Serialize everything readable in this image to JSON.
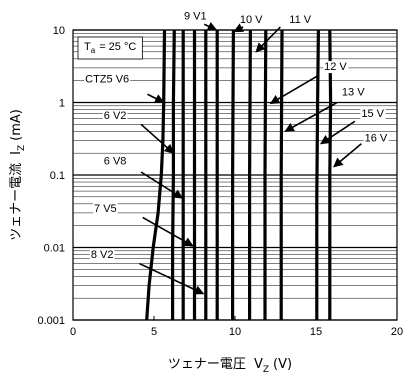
{
  "chart_data": {
    "type": "line",
    "title": "",
    "xlabel": "ツェナー電圧",
    "xlabel_symbol": "V",
    "xlabel_sub": "Z",
    "xlabel_unit": "(V)",
    "ylabel": "ツェナー電流",
    "ylabel_symbol": "I",
    "ylabel_sub": "Z",
    "ylabel_unit": "(mA)",
    "xlim": [
      0,
      20
    ],
    "ylim": [
      0.001,
      10
    ],
    "yscale": "log",
    "grid": true,
    "x_ticks": [
      "0",
      "5",
      "10",
      "15",
      "20"
    ],
    "y_ticks": [
      "0.001",
      "0.01",
      "0.1",
      "1",
      "10"
    ],
    "condition": {
      "symbol": "T",
      "sub": "a",
      "text": "= 25 °C"
    },
    "series": [
      {
        "name": "CTZ5 V6",
        "points": [
          [
            4.55,
            0.001
          ],
          [
            4.7,
            0.003
          ],
          [
            4.95,
            0.01
          ],
          [
            5.25,
            0.03
          ],
          [
            5.45,
            0.1
          ],
          [
            5.55,
            0.3
          ],
          [
            5.6,
            1
          ],
          [
            5.65,
            10
          ]
        ]
      },
      {
        "name": "6 V2",
        "points": [
          [
            6.15,
            0.001
          ],
          [
            6.15,
            0.01
          ],
          [
            6.2,
            0.1
          ],
          [
            6.2,
            1
          ],
          [
            6.25,
            10
          ]
        ]
      },
      {
        "name": "6 V8",
        "points": [
          [
            6.8,
            0.001
          ],
          [
            6.8,
            0.1
          ],
          [
            6.8,
            10
          ]
        ]
      },
      {
        "name": "7 V5",
        "points": [
          [
            7.5,
            0.001
          ],
          [
            7.5,
            0.1
          ],
          [
            7.5,
            10
          ]
        ]
      },
      {
        "name": "8 V2",
        "points": [
          [
            8.2,
            0.001
          ],
          [
            8.2,
            0.1
          ],
          [
            8.2,
            10
          ]
        ]
      },
      {
        "name": "9 V1",
        "points": [
          [
            8.9,
            0.001
          ],
          [
            8.9,
            0.1
          ],
          [
            8.9,
            10
          ]
        ]
      },
      {
        "name": "10 V",
        "points": [
          [
            9.85,
            0.001
          ],
          [
            9.85,
            0.1
          ],
          [
            9.9,
            10
          ]
        ]
      },
      {
        "name": "11 V",
        "points": [
          [
            10.9,
            0.001
          ],
          [
            10.9,
            0.1
          ],
          [
            10.95,
            10
          ]
        ]
      },
      {
        "name": "12 V",
        "points": [
          [
            11.85,
            0.001
          ],
          [
            11.85,
            0.1
          ],
          [
            11.9,
            10
          ]
        ]
      },
      {
        "name": "13 V",
        "points": [
          [
            12.85,
            0.001
          ],
          [
            12.85,
            0.1
          ],
          [
            12.9,
            10
          ]
        ]
      },
      {
        "name": "15 V",
        "points": [
          [
            15.05,
            0.001
          ],
          [
            15.05,
            0.05
          ],
          [
            15.1,
            1
          ],
          [
            15.15,
            10
          ]
        ]
      },
      {
        "name": "16 V",
        "points": [
          [
            15.85,
            0.001
          ],
          [
            15.85,
            0.1
          ],
          [
            15.9,
            1
          ],
          [
            15.85,
            10
          ]
        ]
      }
    ],
    "curve_labels": [
      {
        "text": "9 V1",
        "series": "9 V1",
        "text_at": [
          6.85,
          14
        ],
        "anchor": "start",
        "arrow_from": [
          8.1,
          12
        ],
        "arrow_to": [
          8.85,
          10
        ]
      },
      {
        "text": "10 V",
        "series": "10 V",
        "text_at": [
          11.0,
          12.5
        ],
        "anchor": "middle",
        "arrow_from": [
          10.5,
          11
        ],
        "arrow_to": [
          9.95,
          9.5
        ]
      },
      {
        "text": "11 V",
        "series": "11 V",
        "text_at": [
          13.35,
          12.5
        ],
        "anchor": "start",
        "arrow_from": [
          12.8,
          11
        ],
        "arrow_to": [
          11.3,
          5
        ]
      },
      {
        "text": "12 V",
        "series": "12 V",
        "text_at": [
          15.5,
          2.8
        ],
        "anchor": "start",
        "arrow_from": [
          15.2,
          2.4
        ],
        "arrow_to": [
          12.2,
          0.97
        ]
      },
      {
        "text": "13 V",
        "series": "13 V",
        "text_at": [
          16.6,
          1.25
        ],
        "anchor": "start",
        "arrow_from": [
          16.3,
          1.0
        ],
        "arrow_to": [
          13.1,
          0.4
        ]
      },
      {
        "text": "15 V",
        "series": "15 V",
        "text_at": [
          17.8,
          0.63
        ],
        "anchor": "start",
        "arrow_from": [
          17.4,
          0.55
        ],
        "arrow_to": [
          15.3,
          0.27
        ]
      },
      {
        "text": "16 V",
        "series": "16 V",
        "text_at": [
          18.0,
          0.29
        ],
        "anchor": "start",
        "arrow_from": [
          17.8,
          0.27
        ],
        "arrow_to": [
          16.1,
          0.13
        ]
      },
      {
        "text": "CTZ5 V6",
        "series": "CTZ5 V6",
        "text_at": [
          0.75,
          1.9
        ],
        "anchor": "start",
        "arrow_from": [
          4.6,
          1.3
        ],
        "arrow_to": [
          5.6,
          1.0
        ]
      },
      {
        "text": "6 V2",
        "series": "6 V2",
        "text_at": [
          1.9,
          0.59
        ],
        "anchor": "start",
        "arrow_from": [
          4.2,
          0.5
        ],
        "arrow_to": [
          6.2,
          0.2
        ]
      },
      {
        "text": "6 V8",
        "series": "6 V8",
        "text_at": [
          1.9,
          0.14
        ],
        "anchor": "start",
        "arrow_from": [
          4.2,
          0.11
        ],
        "arrow_to": [
          6.75,
          0.048
        ]
      },
      {
        "text": "7 V5",
        "series": "7 V5",
        "text_at": [
          1.3,
          0.031
        ],
        "anchor": "start",
        "arrow_from": [
          4.3,
          0.026
        ],
        "arrow_to": [
          7.4,
          0.0105
        ]
      },
      {
        "text": "8 V2",
        "series": "8 V2",
        "text_at": [
          1.1,
          0.0072
        ],
        "anchor": "start",
        "arrow_from": [
          4.1,
          0.006
        ],
        "arrow_to": [
          8.05,
          0.0023
        ]
      }
    ]
  }
}
